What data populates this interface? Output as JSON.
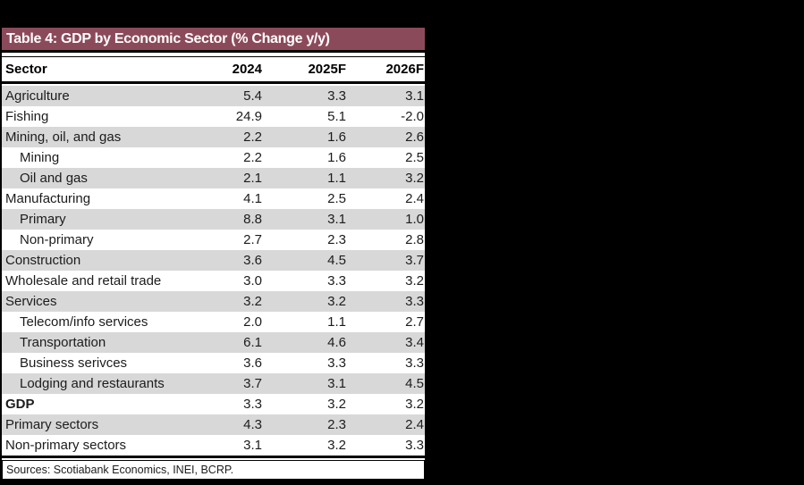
{
  "page": {
    "background": "#000000"
  },
  "table": {
    "title": "Table 4: GDP by Economic Sector (% Change y/y)",
    "title_bg": "#8b4a5a",
    "row_alt_bg": "#d8d8d8",
    "columns": [
      "Sector",
      "2024",
      "2025F",
      "2026F"
    ],
    "rows": [
      {
        "sector": "Agriculture",
        "indent": false,
        "bold": false,
        "values": [
          "5.4",
          "3.3",
          "3.1"
        ]
      },
      {
        "sector": "Fishing",
        "indent": false,
        "bold": false,
        "values": [
          "24.9",
          "5.1",
          "-2.0"
        ]
      },
      {
        "sector": "Mining, oil, and gas",
        "indent": false,
        "bold": false,
        "values": [
          "2.2",
          "1.6",
          "2.6"
        ]
      },
      {
        "sector": "Mining",
        "indent": true,
        "bold": false,
        "values": [
          "2.2",
          "1.6",
          "2.5"
        ]
      },
      {
        "sector": "Oil and gas",
        "indent": true,
        "bold": false,
        "values": [
          "2.1",
          "1.1",
          "3.2"
        ]
      },
      {
        "sector": "Manufacturing",
        "indent": false,
        "bold": false,
        "values": [
          "4.1",
          "2.5",
          "2.4"
        ]
      },
      {
        "sector": "Primary",
        "indent": true,
        "bold": false,
        "values": [
          "8.8",
          "3.1",
          "1.0"
        ]
      },
      {
        "sector": "Non-primary",
        "indent": true,
        "bold": false,
        "values": [
          "2.7",
          "2.3",
          "2.8"
        ]
      },
      {
        "sector": "Construction",
        "indent": false,
        "bold": false,
        "values": [
          "3.6",
          "4.5",
          "3.7"
        ]
      },
      {
        "sector": "Wholesale and retail trade",
        "indent": false,
        "bold": false,
        "values": [
          "3.0",
          "3.3",
          "3.2"
        ]
      },
      {
        "sector": "Services",
        "indent": false,
        "bold": false,
        "values": [
          "3.2",
          "3.2",
          "3.3"
        ]
      },
      {
        "sector": "Telecom/info services",
        "indent": true,
        "bold": false,
        "values": [
          "2.0",
          "1.1",
          "2.7"
        ]
      },
      {
        "sector": "Transportation",
        "indent": true,
        "bold": false,
        "values": [
          "6.1",
          "4.6",
          "3.4"
        ]
      },
      {
        "sector": "Business serivces",
        "indent": true,
        "bold": false,
        "values": [
          "3.6",
          "3.3",
          "3.3"
        ]
      },
      {
        "sector": "Lodging and restaurants",
        "indent": true,
        "bold": false,
        "values": [
          "3.7",
          "3.1",
          "4.5"
        ]
      },
      {
        "sector": "GDP",
        "indent": false,
        "bold": true,
        "values": [
          "3.3",
          "3.2",
          "3.2"
        ]
      },
      {
        "sector": "Primary sectors",
        "indent": false,
        "bold": false,
        "values": [
          "4.3",
          "2.3",
          "2.4"
        ]
      },
      {
        "sector": "Non-primary sectors",
        "indent": false,
        "bold": false,
        "values": [
          "3.1",
          "3.2",
          "3.3"
        ]
      }
    ],
    "footer": "Sources: Scotiabank Economics, INEI, BCRP."
  },
  "chart_data": {
    "type": "table",
    "title": "Table 4: GDP by Economic Sector (% Change y/y)",
    "categories": [
      "Agriculture",
      "Fishing",
      "Mining, oil, and gas",
      "Mining",
      "Oil and gas",
      "Manufacturing",
      "Primary",
      "Non-primary",
      "Construction",
      "Wholesale and retail trade",
      "Services",
      "Telecom/info services",
      "Transportation",
      "Business serivces",
      "Lodging and restaurants",
      "GDP",
      "Primary sectors",
      "Non-primary sectors"
    ],
    "series": [
      {
        "name": "2024",
        "values": [
          5.4,
          24.9,
          2.2,
          2.2,
          2.1,
          4.1,
          8.8,
          2.7,
          3.6,
          3.0,
          3.2,
          2.0,
          6.1,
          3.6,
          3.7,
          3.3,
          4.3,
          3.1
        ]
      },
      {
        "name": "2025F",
        "values": [
          3.3,
          5.1,
          1.6,
          1.6,
          1.1,
          2.5,
          3.1,
          2.3,
          4.5,
          3.3,
          3.2,
          1.1,
          4.6,
          3.3,
          3.1,
          3.2,
          2.3,
          3.2
        ]
      },
      {
        "name": "2026F",
        "values": [
          3.1,
          -2.0,
          2.6,
          2.5,
          3.2,
          2.4,
          1.0,
          2.8,
          3.7,
          3.2,
          3.3,
          2.7,
          3.4,
          3.3,
          4.5,
          3.2,
          2.4,
          3.3
        ]
      }
    ],
    "footnote": "Sources: Scotiabank Economics, INEI, BCRP."
  }
}
